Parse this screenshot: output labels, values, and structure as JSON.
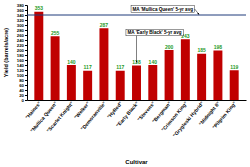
{
  "chart_data": {
    "type": "bar",
    "x_label": "Cultivar",
    "y_label": "Yield (barrels/acre)",
    "categories": [
      "\"Haines\"",
      "\"Mullica Queen\"",
      "\"Scarlet Knight\"",
      "\"Welker\"",
      "\"Demoranville\"",
      "\"HyRed\"",
      "\"Early Black\"",
      "\"Stevens\"",
      "\"Bergman\"",
      "\"Crimson King\"",
      "\"Grygleski Hybrid\"",
      "\"Midnight 8\"",
      "\"Pilgrim King\""
    ],
    "values": [
      353,
      255,
      140,
      117,
      287,
      117,
      138,
      140,
      200,
      243,
      185,
      198,
      119
    ],
    "color": "#c00000",
    "data_labels": true,
    "ylim": [
      0,
      380
    ],
    "yticks": [
      0,
      20,
      40,
      60,
      80,
      100,
      120,
      140,
      160,
      180,
      200,
      220,
      240,
      260,
      280,
      300,
      320,
      340,
      360,
      380
    ],
    "grid": false,
    "reference_lines": [
      {
        "value": 340,
        "label": "MA 'Mullica Queen' 5-yr avg"
      }
    ],
    "annotations": [
      {
        "text": "MA 'Early Black' 5-yr avg",
        "x": "\"Early Black\"",
        "y": 150
      }
    ]
  }
}
